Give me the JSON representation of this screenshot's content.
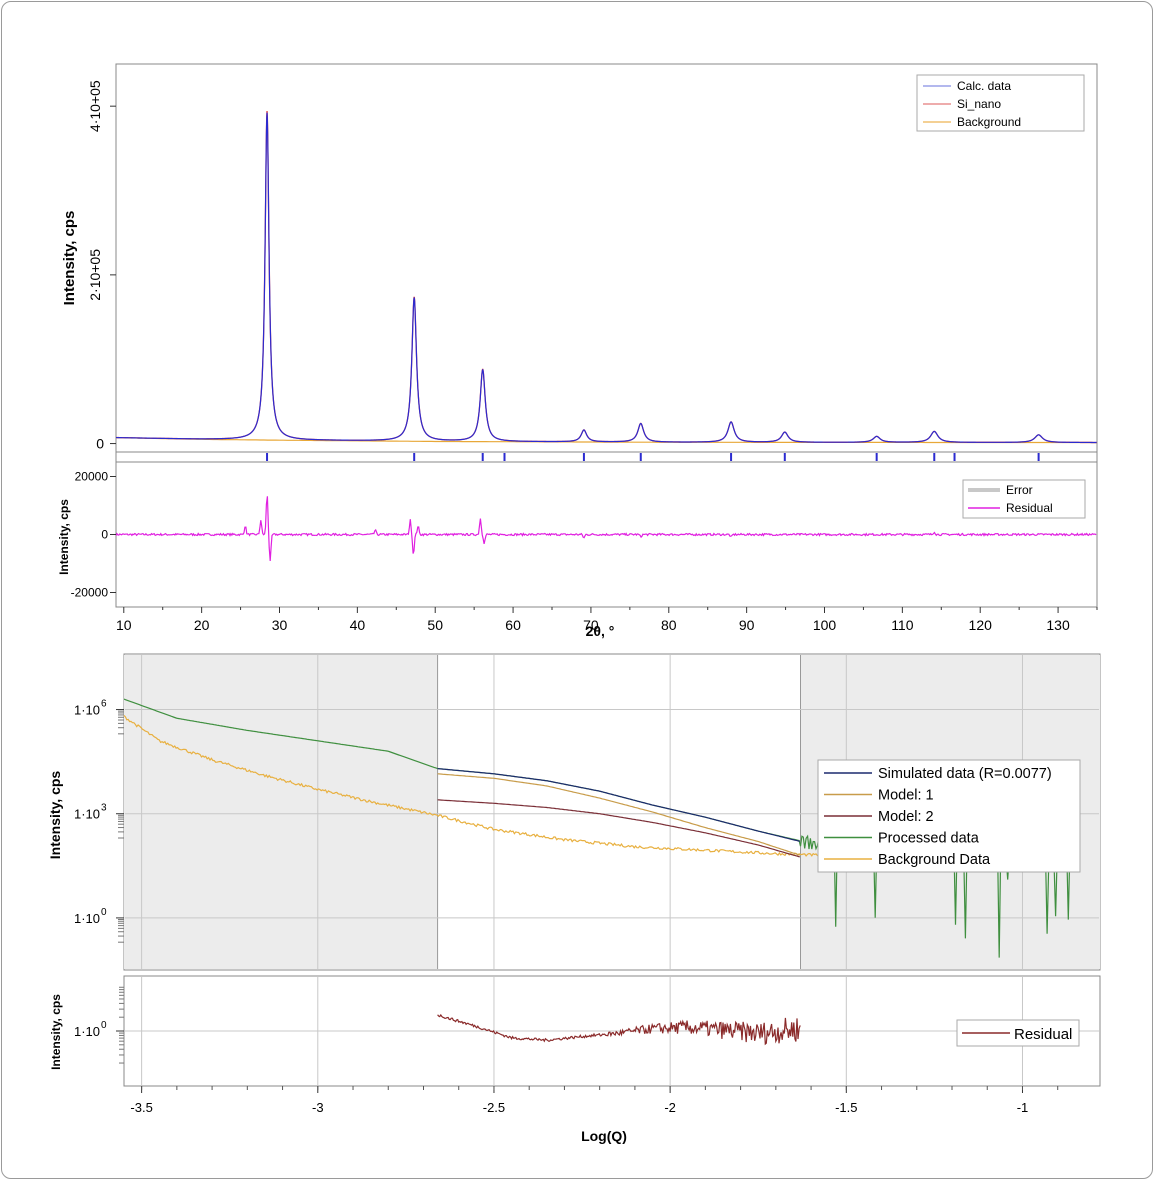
{
  "chart_data": [
    {
      "type": "line",
      "xlabel": "2θ, °",
      "ylabel": "Intensity, cps",
      "xlim": [
        9,
        135
      ],
      "ylim": [
        -10000,
        450000
      ],
      "x_ticks": [
        10,
        20,
        30,
        40,
        50,
        60,
        70,
        80,
        90,
        100,
        110,
        120,
        130
      ],
      "y_ticks": [
        {
          "value": 0,
          "label": "0"
        },
        {
          "value": 200000,
          "label": "2·10+05"
        },
        {
          "value": 400000,
          "label": "4·10+05"
        }
      ],
      "legend": {
        "position": "top-right",
        "entries": [
          "Calc. data",
          "Si_nano",
          "Background"
        ]
      },
      "series_colors": {
        "calc": "#2b2bd0",
        "si_nano": "#e04040",
        "background": "#e8a838"
      },
      "peaks": [
        {
          "x": 28.4,
          "height": 388000
        },
        {
          "x": 47.3,
          "height": 170000
        },
        {
          "x": 56.1,
          "height": 85000
        },
        {
          "x": 69.1,
          "height": 14000
        },
        {
          "x": 76.4,
          "height": 22000
        },
        {
          "x": 88.0,
          "height": 24000
        },
        {
          "x": 94.9,
          "height": 12000
        },
        {
          "x": 106.7,
          "height": 7000
        },
        {
          "x": 114.1,
          "height": 13000
        },
        {
          "x": 127.5,
          "height": 9000
        }
      ],
      "background_values": {
        "x": [
          9,
          20,
          30,
          50,
          80,
          135
        ],
        "y": [
          7000,
          5000,
          4000,
          2500,
          1500,
          1200
        ]
      },
      "reflection_ticks": [
        28.4,
        47.3,
        56.1,
        58.9,
        69.1,
        76.4,
        88.0,
        94.9,
        106.7,
        114.1,
        116.7,
        127.5
      ],
      "residual_panel": {
        "ylabel": "Intensity, cps",
        "ylim": [
          -25000,
          25000
        ],
        "y_ticks": [
          20000,
          0,
          -20000
        ],
        "legend": {
          "position": "top-right",
          "entries": [
            "Error",
            "Residual"
          ]
        },
        "features": [
          {
            "x": 25.6,
            "amp": 3000
          },
          {
            "x": 27.6,
            "amp": 5000
          },
          {
            "x": 28.4,
            "amp": 14000
          },
          {
            "x": 28.8,
            "amp": -9000
          },
          {
            "x": 42.3,
            "amp": 1500
          },
          {
            "x": 46.8,
            "amp": 5000
          },
          {
            "x": 47.2,
            "amp": -7000
          },
          {
            "x": 47.8,
            "amp": 3000
          },
          {
            "x": 55.8,
            "amp": 5500
          },
          {
            "x": 56.3,
            "amp": -3000
          },
          {
            "x": 69.1,
            "amp": -1200
          },
          {
            "x": 76.4,
            "amp": -800
          },
          {
            "x": 88.0,
            "amp": -1000
          },
          {
            "x": 114.1,
            "amp": 1000
          }
        ]
      }
    },
    {
      "type": "line",
      "xlabel": "Log(Q)",
      "ylabel": "Intensity, cps",
      "xlim": [
        -3.55,
        -0.78
      ],
      "x_ticks": [
        -3.5,
        -3,
        -2.5,
        -2,
        -1.5,
        -1
      ],
      "y_scale": "log",
      "ylim_log10": [
        -1.5,
        7.6
      ],
      "y_ticks": [
        {
          "log10": 6,
          "label": "1·10"
        },
        {
          "log10": 3,
          "label": "1·10"
        }
      ],
      "y_tick_exponents": [
        "6",
        "3",
        "0"
      ],
      "y_ticks_zero": {
        "log10": 0,
        "label": "1·10"
      },
      "shaded_regions": [
        [
          -3.55,
          -2.66
        ],
        [
          -1.63,
          -0.78
        ]
      ],
      "legend": {
        "position": "right",
        "entries": [
          {
            "name": "Simulated data (R=0.0077)",
            "color": "#1c2a6e"
          },
          {
            "name": "Model: 1",
            "color": "#c89c4a"
          },
          {
            "name": "Model: 2",
            "color": "#7a2e36"
          },
          {
            "name": "Processed data",
            "color": "#3f8f3f"
          },
          {
            "name": "Background Data",
            "color": "#e8b040"
          }
        ]
      },
      "series": [
        {
          "name": "Simulated data (R=0.0077)",
          "x": [
            -2.66,
            -2.5,
            -2.35,
            -2.2,
            -2.05,
            -1.9,
            -1.75,
            -1.63
          ],
          "y_log10": [
            4.3,
            4.15,
            3.95,
            3.65,
            3.25,
            2.9,
            2.5,
            2.2
          ]
        },
        {
          "name": "Model: 1",
          "x": [
            -2.66,
            -2.5,
            -2.35,
            -2.2,
            -2.05,
            -1.9,
            -1.75,
            -1.63
          ],
          "y_log10": [
            4.15,
            4.02,
            3.8,
            3.45,
            3.05,
            2.6,
            2.2,
            1.8
          ]
        },
        {
          "name": "Model: 2",
          "x": [
            -2.66,
            -2.5,
            -2.35,
            -2.2,
            -2.05,
            -1.9,
            -1.75,
            -1.63
          ],
          "y_log10": [
            3.4,
            3.3,
            3.18,
            3.0,
            2.75,
            2.45,
            2.1,
            1.75
          ]
        },
        {
          "name": "Processed data",
          "x": [
            -3.55,
            -3.4,
            -3.2,
            -3.0,
            -2.8,
            -2.66,
            -2.5,
            -2.35,
            -2.2,
            -2.05,
            -1.9,
            -1.75,
            -1.6,
            -1.45,
            -1.3,
            -1.15,
            -1.0,
            -0.85
          ],
          "y_log10": [
            6.3,
            5.75,
            5.4,
            5.1,
            4.8,
            4.3,
            4.15,
            3.95,
            3.65,
            3.25,
            2.9,
            2.5,
            2.15,
            1.9,
            1.75,
            1.6,
            1.6,
            1.55
          ]
        },
        {
          "name": "Background Data",
          "x": [
            -3.55,
            -3.45,
            -3.3,
            -3.15,
            -3.0,
            -2.85,
            -2.66,
            -2.5,
            -2.3,
            -2.1,
            -1.9,
            -1.7,
            -1.5,
            -1.3,
            -1.1,
            -0.85
          ],
          "y_log10": [
            5.8,
            5.1,
            4.55,
            4.1,
            3.7,
            3.35,
            2.95,
            2.55,
            2.25,
            2.05,
            1.95,
            1.85,
            1.78,
            1.72,
            1.68,
            1.62
          ]
        }
      ],
      "residual_panel": {
        "ylabel": "Intensity, cps",
        "y_scale": "log",
        "y_ticks": [
          {
            "log10": 0,
            "label": "1·10"
          }
        ],
        "legend": {
          "position": "right",
          "entries": [
            {
              "name": "Residual",
              "color": "#8a2a2a"
            }
          ]
        },
        "series": {
          "name": "Residual",
          "x": [
            -2.66,
            -2.55,
            -2.45,
            -2.35,
            -2.25,
            -2.15,
            -2.05,
            -1.95,
            -1.85,
            -1.75,
            -1.63
          ],
          "y_log10": [
            0.35,
            0.1,
            -0.15,
            -0.2,
            -0.12,
            -0.05,
            0.05,
            0.08,
            0.02,
            -0.05,
            0.05
          ]
        }
      }
    }
  ]
}
